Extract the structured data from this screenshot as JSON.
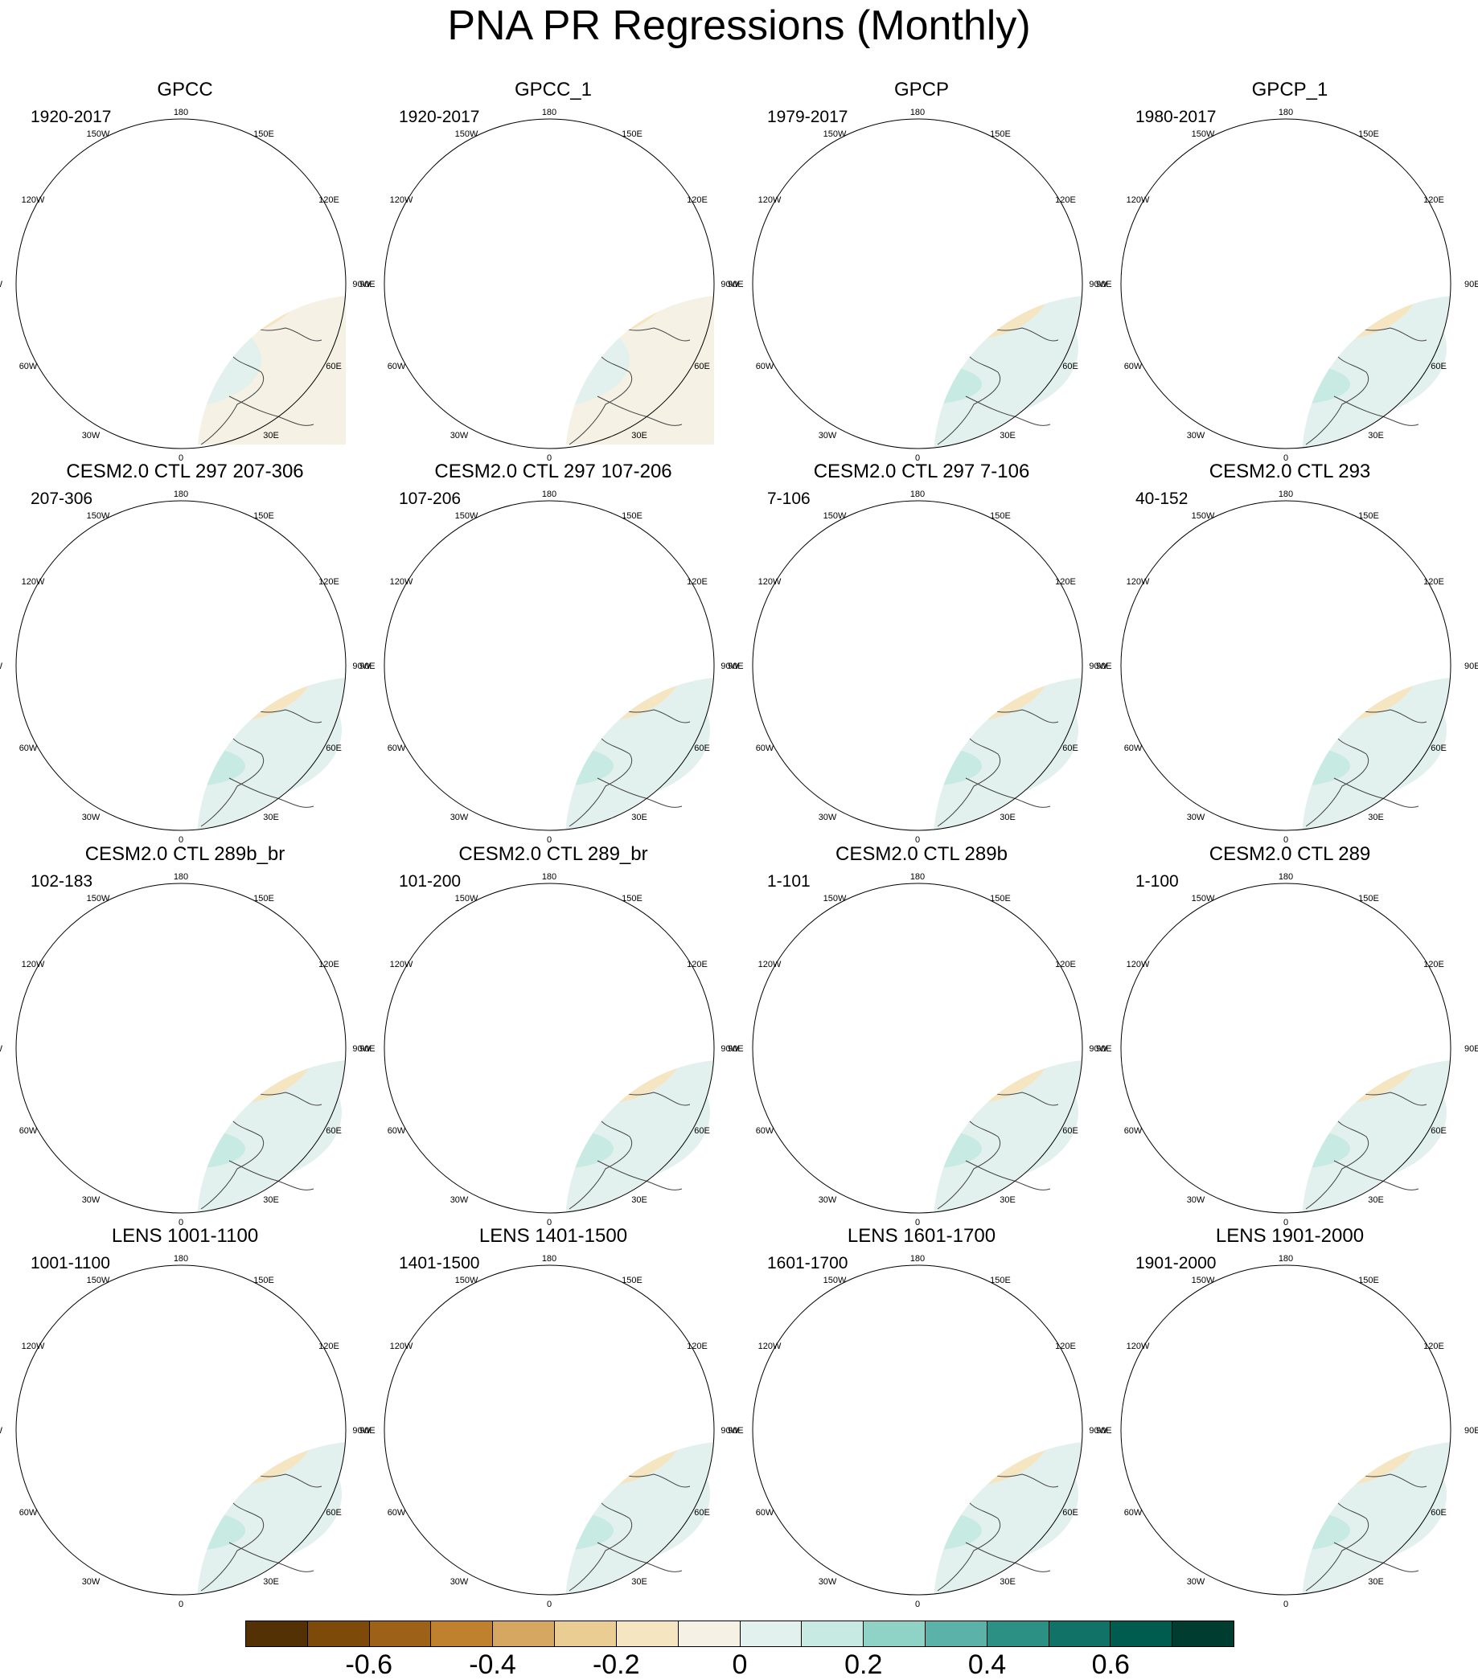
{
  "figure": {
    "title": "PNA PR Regressions (Monthly)"
  },
  "lon_labels": {
    "top": "180",
    "bottom": "0",
    "left": "90W",
    "right": "90E",
    "upper_left_outer": "120W",
    "upper_left_inner": "150W",
    "upper_right_inner": "150E",
    "upper_right_outer": "120E",
    "lower_left_outer": "60W",
    "lower_left_inner": "30W",
    "lower_right_inner": "30E",
    "lower_right_outer": "60E"
  },
  "panels": [
    {
      "title": "GPCC",
      "years": "1920-2017",
      "style": "obs_land"
    },
    {
      "title": "GPCC_1",
      "years": "1920-2017",
      "style": "obs_land"
    },
    {
      "title": "GPCP",
      "years": "1979-2017",
      "style": "obs_global"
    },
    {
      "title": "GPCP_1",
      "years": "1980-2017",
      "style": "obs_global"
    },
    {
      "title": "CESM2.0 CTL 297 207-306",
      "years": "207-306",
      "style": "model"
    },
    {
      "title": "CESM2.0 CTL 297 107-206",
      "years": "107-206",
      "style": "model"
    },
    {
      "title": "CESM2.0 CTL 297 7-106",
      "years": "7-106",
      "style": "model"
    },
    {
      "title": "CESM2.0 CTL 293",
      "years": "40-152",
      "style": "model"
    },
    {
      "title": "CESM2.0 CTL 289b_br",
      "years": "102-183",
      "style": "model"
    },
    {
      "title": "CESM2.0 CTL 289_br",
      "years": "101-200",
      "style": "model"
    },
    {
      "title": "CESM2.0 CTL 289b",
      "years": "1-101",
      "style": "model"
    },
    {
      "title": "CESM2.0 CTL 289",
      "years": "1-100",
      "style": "model"
    },
    {
      "title": "LENS 1001-1100",
      "years": "1001-1100",
      "style": "lens"
    },
    {
      "title": "LENS 1401-1500",
      "years": "1401-1500",
      "style": "lens"
    },
    {
      "title": "LENS 1601-1700",
      "years": "1601-1700",
      "style": "lens"
    },
    {
      "title": "LENS 1901-2000",
      "years": "1901-2000",
      "style": "lens"
    }
  ],
  "colorbar": {
    "levels": [
      -0.7,
      -0.6,
      -0.5,
      -0.4,
      -0.3,
      -0.2,
      -0.1,
      0,
      0.1,
      0.2,
      0.3,
      0.4,
      0.5,
      0.6,
      0.7
    ],
    "colors": [
      "#543005",
      "#7e4a0a",
      "#9d6117",
      "#bf812d",
      "#d6a760",
      "#e9cd92",
      "#f5e5c1",
      "#f5f1e4",
      "#e3f1ee",
      "#c7eae2",
      "#8fd2c6",
      "#5ab2a8",
      "#2d9085",
      "#117367",
      "#015c50",
      "#003c30"
    ],
    "tick_labels": [
      "-0.6",
      "-0.4",
      "-0.2",
      "0",
      "0.2",
      "0.4",
      "0.6"
    ]
  }
}
